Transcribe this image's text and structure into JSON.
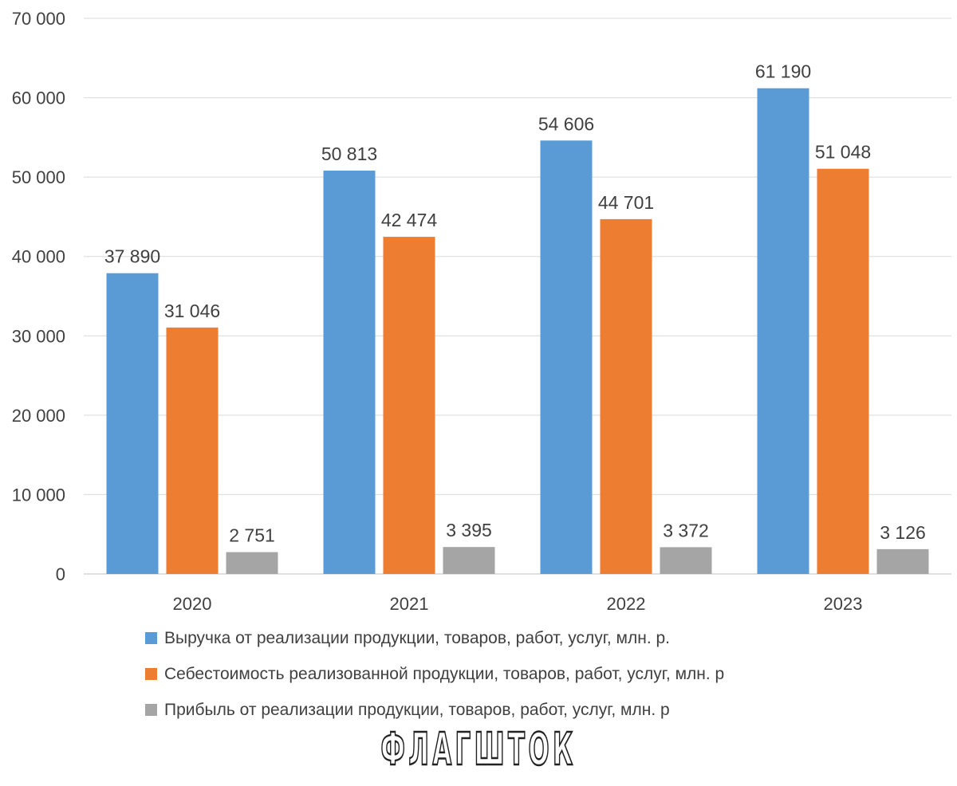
{
  "chart_data": {
    "type": "bar",
    "categories": [
      "2020",
      "2021",
      "2022",
      "2023"
    ],
    "series": [
      {
        "name": "Выручка от реализации продукции, товаров, работ, услуг, млн. р.",
        "color": "#5b9bd5",
        "values": [
          37890,
          50813,
          54606,
          61190
        ],
        "labels": [
          "37 890",
          "50 813",
          "54 606",
          "61 190"
        ]
      },
      {
        "name": "Себестоимость реализованной продукции, товаров, работ, услуг, млн. р",
        "color": "#ed7d31",
        "values": [
          31046,
          42474,
          44701,
          51048
        ],
        "labels": [
          "31 046",
          "42 474",
          "44 701",
          "51 048"
        ]
      },
      {
        "name": "Прибыль от реализации продукции, товаров, работ, услуг, млн. р",
        "color": "#a5a5a5",
        "values": [
          2751,
          3395,
          3372,
          3126
        ],
        "labels": [
          "2 751",
          "3 395",
          "3 372",
          "3 126"
        ]
      }
    ],
    "ylim": [
      0,
      70000
    ],
    "yticks": [
      0,
      10000,
      20000,
      30000,
      40000,
      50000,
      60000,
      70000
    ],
    "ytick_labels": [
      "0",
      "10 000",
      "20 000",
      "30 000",
      "40 000",
      "50 000",
      "60 000",
      "70 000"
    ],
    "grid": true,
    "legend_position": "bottom",
    "title": "",
    "xlabel": "",
    "ylabel": ""
  },
  "watermark": {
    "text": "ФЛАГШТОК"
  }
}
